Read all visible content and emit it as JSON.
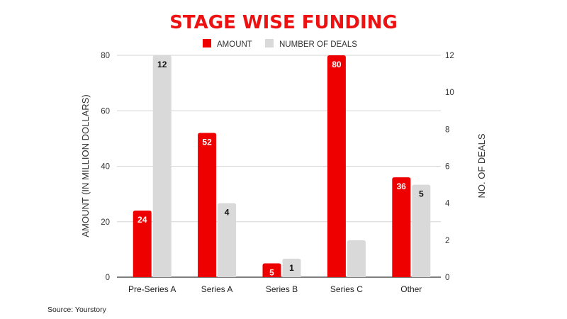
{
  "chart_data": {
    "type": "bar",
    "title": "STAGE WISE FUNDING",
    "categories": [
      "Pre-Series A",
      "Series A",
      "Series B",
      "Series C",
      "Other"
    ],
    "series": [
      {
        "name": "AMOUNT",
        "axis": "left",
        "color": "#ee0000",
        "values": [
          24,
          52,
          5,
          80,
          36
        ],
        "labels": [
          "24",
          "52",
          "5",
          "80",
          "36"
        ]
      },
      {
        "name": "NUMBER OF DEALS",
        "axis": "right",
        "color": "#d9d9d9",
        "values": [
          12,
          4,
          1,
          2,
          5
        ],
        "labels": [
          "12",
          "4",
          "1",
          "",
          "5"
        ]
      }
    ],
    "ylabel": "AMOUNT (IN MILLION DOLLARS)",
    "y2label": "NO. OF DEALS",
    "ylim": [
      0,
      80
    ],
    "y2lim": [
      0,
      12
    ],
    "yticks": [
      "0",
      "20",
      "40",
      "60",
      "80"
    ],
    "y2ticks": [
      "0",
      "2",
      "4",
      "6",
      "8",
      "10",
      "12"
    ],
    "grid": true,
    "legend_position": "top-center"
  },
  "source": "Source: Yourstory"
}
